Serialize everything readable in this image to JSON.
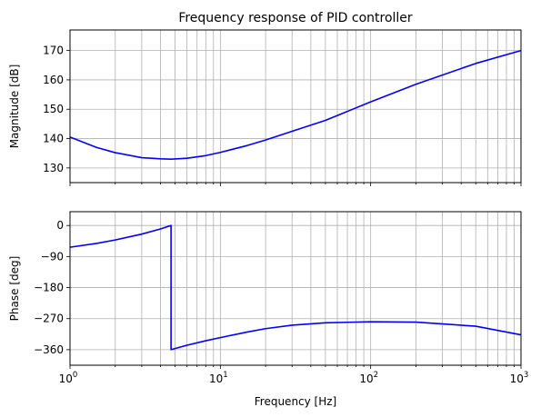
{
  "chart_data": [
    {
      "type": "line",
      "title": "Frequency response of PID controller",
      "xlabel": "",
      "ylabel": "Magnitude [dB]",
      "xscale": "log",
      "xlim": [
        1,
        1000
      ],
      "ylim": [
        125,
        177
      ],
      "yticks": [
        130,
        140,
        150,
        160,
        170
      ],
      "ytick_labels": [
        "130",
        "140",
        "150",
        "160",
        "170"
      ],
      "grid": "both-major-minor",
      "color": "#0000ff",
      "series": [
        {
          "x": [
            1,
            1.5,
            2,
            3,
            4,
            4.7,
            6,
            8,
            10,
            15,
            20,
            30,
            50,
            100,
            200,
            500,
            1000
          ],
          "y": [
            140.5,
            137.0,
            135.2,
            133.5,
            133.1,
            133.0,
            133.3,
            134.2,
            135.3,
            137.6,
            139.5,
            142.5,
            146.2,
            152.5,
            158.5,
            165.6,
            170.0
          ]
        }
      ]
    },
    {
      "type": "line",
      "title": "",
      "xlabel": "Frequency [Hz]",
      "ylabel": "Phase [deg]",
      "xscale": "log",
      "xlim": [
        1,
        1000
      ],
      "xticks": [
        1,
        10,
        100,
        1000
      ],
      "xtick_labels": [
        {
          "base": "10",
          "exp": "0"
        },
        {
          "base": "10",
          "exp": "1"
        },
        {
          "base": "10",
          "exp": "2"
        },
        {
          "base": "10",
          "exp": "3"
        }
      ],
      "ylim": [
        -405,
        40
      ],
      "yticks": [
        0,
        -90,
        -180,
        -270,
        -360
      ],
      "ytick_labels": [
        "0",
        "−90",
        "−180",
        "−270",
        "−360"
      ],
      "grid": "both-major-minor",
      "color": "#0000ff",
      "series": [
        {
          "x": [
            1,
            1.5,
            2,
            3,
            4,
            4.7,
            4.7,
            6,
            8,
            10,
            15,
            20,
            30,
            50,
            100,
            200,
            500,
            1000
          ],
          "y": [
            -63,
            -52,
            -42,
            -25,
            -10,
            0,
            -360,
            -347,
            -334,
            -325,
            -309,
            -299,
            -289,
            -282,
            -279,
            -280,
            -292,
            -317
          ]
        }
      ]
    }
  ]
}
